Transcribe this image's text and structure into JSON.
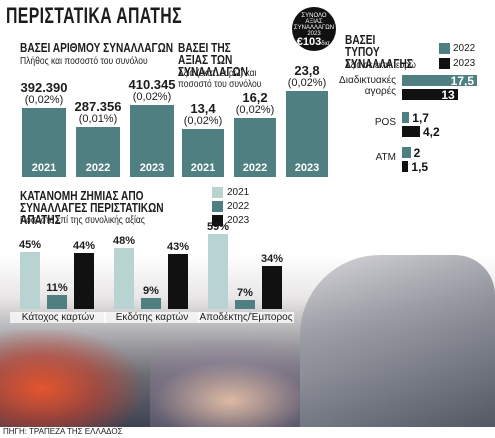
{
  "title": "ΠΕΡΙΣΤΑΤΙΚΑ ΑΠΑΤΗΣ",
  "total_badge": {
    "line1": "ΣΥΝΟΛΟ",
    "line2": "ΑΞΙΑΣ",
    "line3": "ΣΥΝΑΛΛΑΓΩΝ",
    "line4": "2023",
    "value": "€103",
    "unit": "δισ."
  },
  "source": "ΠΗΓΗ: ΤΡΑΠΕΖΑ ΤΗΣ ΕΛΛΑΔΟΣ",
  "colors": {
    "teal": "#4f7f80",
    "black": "#111111",
    "light": "#b9d3d3",
    "dark_grey": "#3a3a3a"
  },
  "chart_data": [
    {
      "type": "bar",
      "title": "ΒΑΣΕΙ ΑΡΙΘΜΟΥ ΣΥΝΑΛΛΑΓΩΝ",
      "subtitle": "Πλήθος και ποσοστό του συνόλου",
      "categories": [
        "2021",
        "2022",
        "2023"
      ],
      "values": [
        392390,
        287356,
        410345
      ],
      "value_labels": [
        "392.390",
        "287.356",
        "410.345"
      ],
      "pct_labels": [
        "(0,02%)",
        "(0,01%)",
        "(0,02%)"
      ]
    },
    {
      "type": "bar",
      "title": "ΒΑΣΕΙ ΤΗΣ ΑΞΙΑΣ ΤΩΝ ΣΥΝΑΛΛΑΓΩΝ",
      "subtitle": "Αξία (εκατ. ευρώ) και ποσοστό του συνόλου",
      "categories": [
        "2021",
        "2022",
        "2023"
      ],
      "values": [
        13.4,
        16.2,
        23.8
      ],
      "value_labels": [
        "13,4",
        "16,2",
        "23,8"
      ],
      "pct_labels": [
        "(0,02%)",
        "(0,02%)",
        "(0,02%)"
      ]
    },
    {
      "type": "bar",
      "orientation": "horizontal",
      "title": "ΒΑΣΕΙ ΤΥΠΟΥ ΣΥΝΑΛΛΑΓΗΣ",
      "subtitle": "Αξία σε εκατ. ευρώ",
      "categories": [
        "Διαδικτυακές αγορές",
        "POS",
        "ATM"
      ],
      "series": [
        {
          "name": "2022",
          "values": [
            17.5,
            1.7,
            2
          ],
          "labels": [
            "17,5",
            "1,7",
            "2"
          ]
        },
        {
          "name": "2023",
          "values": [
            13,
            4.2,
            1.5
          ],
          "labels": [
            "13",
            "4,2",
            "1,5"
          ]
        }
      ]
    },
    {
      "type": "bar",
      "title": "ΚΑΤΑΝΟΜΗ ΖΗΜΙΑΣ ΑΠΟ ΣΥΝΑΛΛΑΓΕΣ ΠΕΡΙΣΤΑΤΙΚΩΝ ΑΠΑΤΗΣ",
      "subtitle": "Ποσοστό επί της συνολικής αξίας",
      "categories": [
        "Κάτοχος καρτών",
        "Εκδότης καρτών",
        "Αποδέκτης/Έμπορος"
      ],
      "series": [
        {
          "name": "2021",
          "values": [
            45,
            48,
            59
          ],
          "labels": [
            "45%",
            "48%",
            "59%"
          ]
        },
        {
          "name": "2022",
          "values": [
            11,
            9,
            7
          ],
          "labels": [
            "11%",
            "9%",
            "7%"
          ]
        },
        {
          "name": "2023",
          "values": [
            44,
            43,
            34
          ],
          "labels": [
            "44%",
            "43%",
            "34%"
          ]
        }
      ]
    }
  ]
}
